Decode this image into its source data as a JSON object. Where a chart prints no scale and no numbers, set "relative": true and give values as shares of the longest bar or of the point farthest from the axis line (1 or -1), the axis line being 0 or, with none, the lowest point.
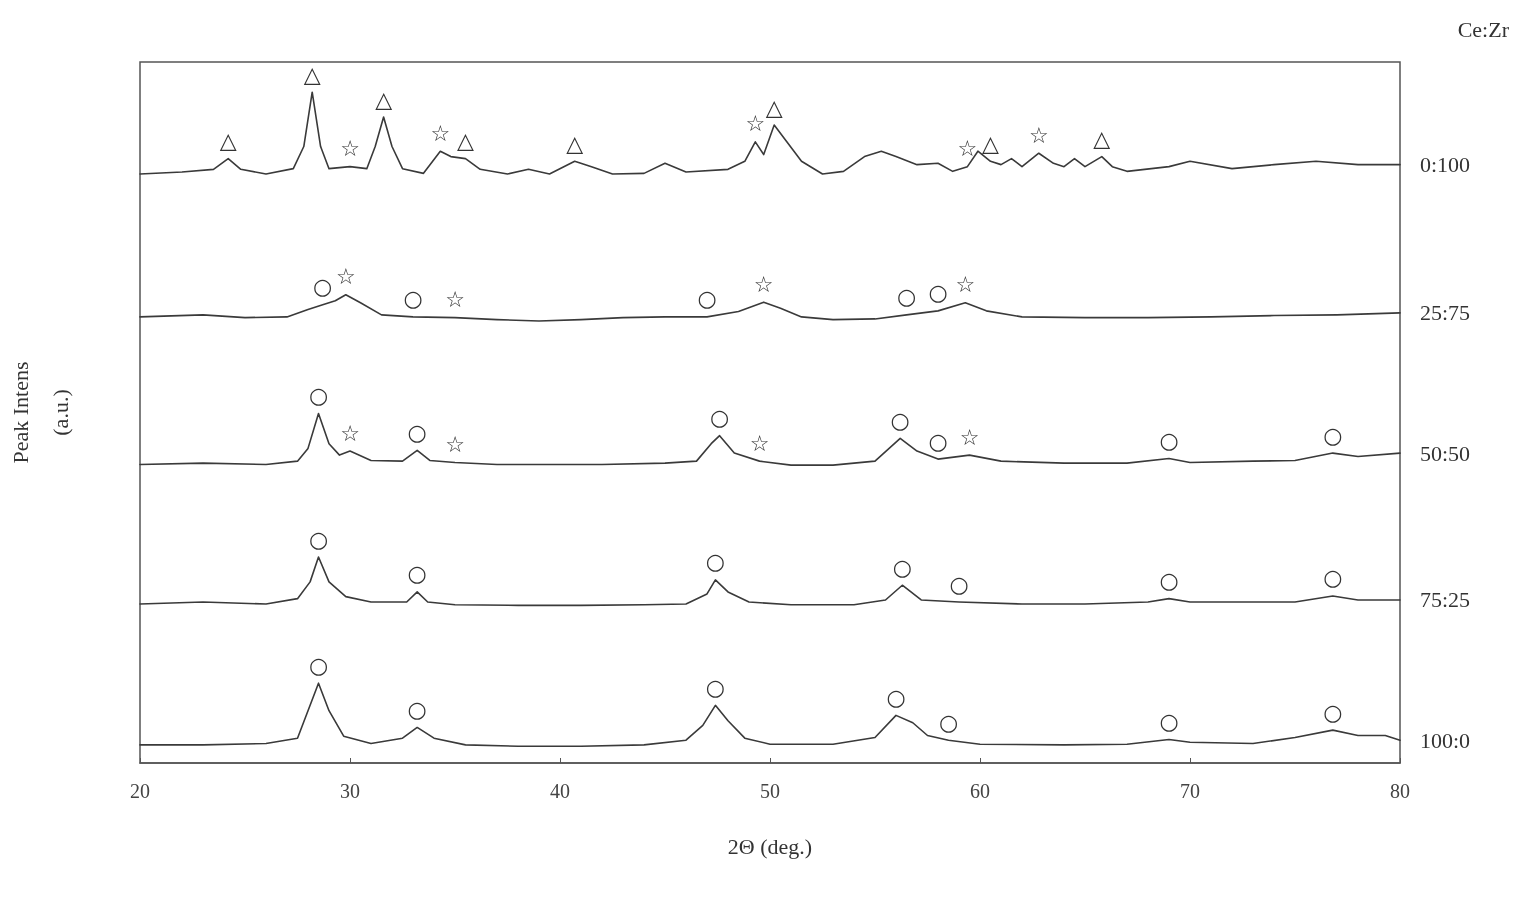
{
  "chart_data": {
    "type": "line",
    "relative": true,
    "xlabel": "2Θ (deg.)",
    "ylabel": "Peak Intens\n(a.u.)",
    "legend_title": "Ce:Zr",
    "xlim": [
      20,
      80
    ],
    "xticks": [
      20,
      30,
      40,
      50,
      60,
      70,
      80
    ],
    "grid": false,
    "legend": false,
    "marker": "none",
    "line_style": "solid",
    "series": [
      {
        "name": "0:100",
        "color": "#3a3a3a",
        "x": [
          20,
          22,
          23.5,
          24.2,
          24.8,
          26,
          27.3,
          27.8,
          28.2,
          28.6,
          29,
          30,
          30.8,
          31.2,
          31.6,
          32,
          32.5,
          33.5,
          34.3,
          34.8,
          35.5,
          36.2,
          37.5,
          38.5,
          39.5,
          40.7,
          41.5,
          42.5,
          44,
          45,
          46,
          48,
          48.8,
          49.3,
          49.7,
          50.2,
          50.8,
          51.5,
          52.5,
          53.5,
          54.5,
          55.3,
          56,
          57,
          58,
          58.7,
          59.4,
          59.9,
          60.5,
          61,
          61.5,
          62,
          62.8,
          63.5,
          64,
          64.5,
          65,
          65.8,
          66.3,
          67,
          69,
          70,
          72,
          74,
          76,
          78,
          80
        ],
        "values": [
          0.878,
          0.881,
          0.885,
          0.901,
          0.885,
          0.878,
          0.886,
          0.919,
          1.0,
          0.919,
          0.886,
          0.889,
          0.886,
          0.919,
          0.963,
          0.919,
          0.886,
          0.879,
          0.912,
          0.904,
          0.901,
          0.885,
          0.878,
          0.885,
          0.878,
          0.897,
          0.889,
          0.878,
          0.879,
          0.894,
          0.881,
          0.885,
          0.897,
          0.926,
          0.907,
          0.951,
          0.926,
          0.897,
          0.878,
          0.882,
          0.904,
          0.912,
          0.904,
          0.892,
          0.894,
          0.882,
          0.889,
          0.912,
          0.897,
          0.892,
          0.901,
          0.889,
          0.909,
          0.894,
          0.889,
          0.901,
          0.889,
          0.904,
          0.889,
          0.882,
          0.889,
          0.897,
          0.886,
          0.892,
          0.897,
          0.892,
          0.892
        ]
      },
      {
        "name": "25:75",
        "color": "#3a3a3a",
        "x": [
          20,
          23,
          25,
          27,
          28,
          28.7,
          29.3,
          29.8,
          30.5,
          31.5,
          33,
          35,
          37,
          39,
          41,
          43,
          45,
          47,
          48.5,
          49.7,
          50.5,
          51.5,
          53,
          55,
          56.5,
          58,
          59.3,
          60.3,
          62,
          65,
          68,
          71,
          74,
          77,
          80
        ],
        "values": [
          0.665,
          0.668,
          0.664,
          0.665,
          0.676,
          0.683,
          0.689,
          0.698,
          0.686,
          0.668,
          0.665,
          0.664,
          0.661,
          0.659,
          0.661,
          0.664,
          0.665,
          0.665,
          0.673,
          0.687,
          0.678,
          0.665,
          0.661,
          0.662,
          0.668,
          0.674,
          0.686,
          0.674,
          0.665,
          0.664,
          0.664,
          0.665,
          0.667,
          0.668,
          0.671
        ]
      },
      {
        "name": "50:50",
        "color": "#3a3a3a",
        "x": [
          20,
          23,
          26,
          27.5,
          28,
          28.5,
          29,
          29.5,
          30,
          31,
          32.5,
          33.2,
          33.8,
          35,
          37,
          39,
          42,
          45,
          46.5,
          47.2,
          47.6,
          48.3,
          49.5,
          51,
          53,
          55,
          56.2,
          57,
          58,
          59.5,
          61,
          64,
          67,
          69,
          70,
          73,
          75,
          76.8,
          78,
          80
        ],
        "values": [
          0.445,
          0.447,
          0.445,
          0.45,
          0.469,
          0.521,
          0.476,
          0.459,
          0.465,
          0.451,
          0.45,
          0.466,
          0.451,
          0.448,
          0.445,
          0.445,
          0.445,
          0.447,
          0.45,
          0.476,
          0.488,
          0.462,
          0.45,
          0.444,
          0.444,
          0.45,
          0.484,
          0.465,
          0.453,
          0.459,
          0.45,
          0.447,
          0.447,
          0.454,
          0.448,
          0.45,
          0.451,
          0.462,
          0.457,
          0.462
        ]
      },
      {
        "name": "75:25",
        "color": "#3a3a3a",
        "x": [
          20,
          23,
          26,
          27.5,
          28.1,
          28.5,
          29,
          29.8,
          31,
          32.7,
          33.2,
          33.7,
          35,
          38,
          41,
          44,
          46,
          47,
          47.4,
          48,
          49,
          51,
          54,
          55.5,
          56.3,
          57.2,
          59,
          62,
          65,
          68,
          69,
          70,
          73,
          75,
          76.8,
          78,
          80
        ],
        "values": [
          0.237,
          0.24,
          0.237,
          0.245,
          0.27,
          0.307,
          0.27,
          0.248,
          0.24,
          0.24,
          0.255,
          0.24,
          0.236,
          0.235,
          0.235,
          0.236,
          0.237,
          0.252,
          0.273,
          0.255,
          0.24,
          0.236,
          0.236,
          0.243,
          0.265,
          0.243,
          0.24,
          0.237,
          0.237,
          0.24,
          0.245,
          0.24,
          0.24,
          0.24,
          0.249,
          0.243,
          0.243
        ]
      },
      {
        "name": "100:0",
        "color": "#3a3a3a",
        "x": [
          20,
          23,
          26,
          27.5,
          28,
          28.5,
          29,
          29.7,
          31,
          32.5,
          33.2,
          34,
          35.5,
          38,
          41,
          44,
          46,
          46.8,
          47.4,
          48,
          48.8,
          50,
          53,
          55,
          56,
          56.8,
          57.5,
          58.5,
          60,
          64,
          67,
          69,
          70,
          73,
          75,
          76.8,
          78,
          79.3,
          80
        ],
        "values": [
          0.027,
          0.027,
          0.029,
          0.037,
          0.078,
          0.119,
          0.078,
          0.04,
          0.029,
          0.037,
          0.053,
          0.037,
          0.027,
          0.025,
          0.025,
          0.027,
          0.034,
          0.056,
          0.086,
          0.063,
          0.037,
          0.028,
          0.028,
          0.038,
          0.071,
          0.06,
          0.041,
          0.034,
          0.028,
          0.027,
          0.028,
          0.035,
          0.031,
          0.029,
          0.038,
          0.049,
          0.041,
          0.041,
          0.034
        ]
      }
    ],
    "annotations": [
      {
        "text": "△",
        "x": 24.2,
        "y": 0.901
      },
      {
        "text": "△",
        "x": 28.2,
        "y": 1.0
      },
      {
        "text": "☆",
        "x": 30,
        "y": 0.889
      },
      {
        "text": "△",
        "x": 31.6,
        "y": 0.963
      },
      {
        "text": "☆",
        "x": 34.3,
        "y": 0.912
      },
      {
        "text": "△",
        "x": 35.5,
        "y": 0.901
      },
      {
        "text": "△",
        "x": 40.7,
        "y": 0.897
      },
      {
        "text": "☆",
        "x": 49.3,
        "y": 0.926
      },
      {
        "text": "△",
        "x": 50.2,
        "y": 0.951
      },
      {
        "text": "☆",
        "x": 59.4,
        "y": 0.889
      },
      {
        "text": "△",
        "x": 60.5,
        "y": 0.897
      },
      {
        "text": "☆",
        "x": 62.8,
        "y": 0.909
      },
      {
        "text": "△",
        "x": 65.8,
        "y": 0.904
      },
      {
        "text": "○",
        "x": 28.7,
        "y": 0.683
      },
      {
        "text": "☆",
        "x": 29.8,
        "y": 0.698
      },
      {
        "text": "○",
        "x": 33,
        "y": 0.665
      },
      {
        "text": "☆",
        "x": 35,
        "y": 0.664
      },
      {
        "text": "○",
        "x": 47,
        "y": 0.665
      },
      {
        "text": "☆",
        "x": 49.7,
        "y": 0.687
      },
      {
        "text": "○",
        "x": 56.5,
        "y": 0.668
      },
      {
        "text": "○",
        "x": 58,
        "y": 0.674
      },
      {
        "text": "☆",
        "x": 59.3,
        "y": 0.686
      },
      {
        "text": "○",
        "x": 28.5,
        "y": 0.521
      },
      {
        "text": "☆",
        "x": 30,
        "y": 0.465
      },
      {
        "text": "○",
        "x": 33.2,
        "y": 0.466
      },
      {
        "text": "☆",
        "x": 35,
        "y": 0.448
      },
      {
        "text": "○",
        "x": 47.6,
        "y": 0.488
      },
      {
        "text": "☆",
        "x": 49.5,
        "y": 0.45
      },
      {
        "text": "○",
        "x": 56.2,
        "y": 0.484
      },
      {
        "text": "○",
        "x": 58,
        "y": 0.453
      },
      {
        "text": "☆",
        "x": 59.5,
        "y": 0.459
      },
      {
        "text": "○",
        "x": 69,
        "y": 0.454
      },
      {
        "text": "○",
        "x": 76.8,
        "y": 0.462
      },
      {
        "text": "○",
        "x": 28.5,
        "y": 0.307
      },
      {
        "text": "○",
        "x": 33.2,
        "y": 0.255
      },
      {
        "text": "○",
        "x": 47.4,
        "y": 0.273
      },
      {
        "text": "○",
        "x": 56.3,
        "y": 0.265
      },
      {
        "text": "○",
        "x": 59,
        "y": 0.24
      },
      {
        "text": "○",
        "x": 69,
        "y": 0.245
      },
      {
        "text": "○",
        "x": 76.8,
        "y": 0.249
      },
      {
        "text": "○",
        "x": 28.5,
        "y": 0.119
      },
      {
        "text": "○",
        "x": 33.2,
        "y": 0.053
      },
      {
        "text": "○",
        "x": 47.4,
        "y": 0.086
      },
      {
        "text": "○",
        "x": 56,
        "y": 0.071
      },
      {
        "text": "○",
        "x": 58.5,
        "y": 0.034
      },
      {
        "text": "○",
        "x": 69,
        "y": 0.035
      },
      {
        "text": "○",
        "x": 76.8,
        "y": 0.049
      }
    ]
  }
}
